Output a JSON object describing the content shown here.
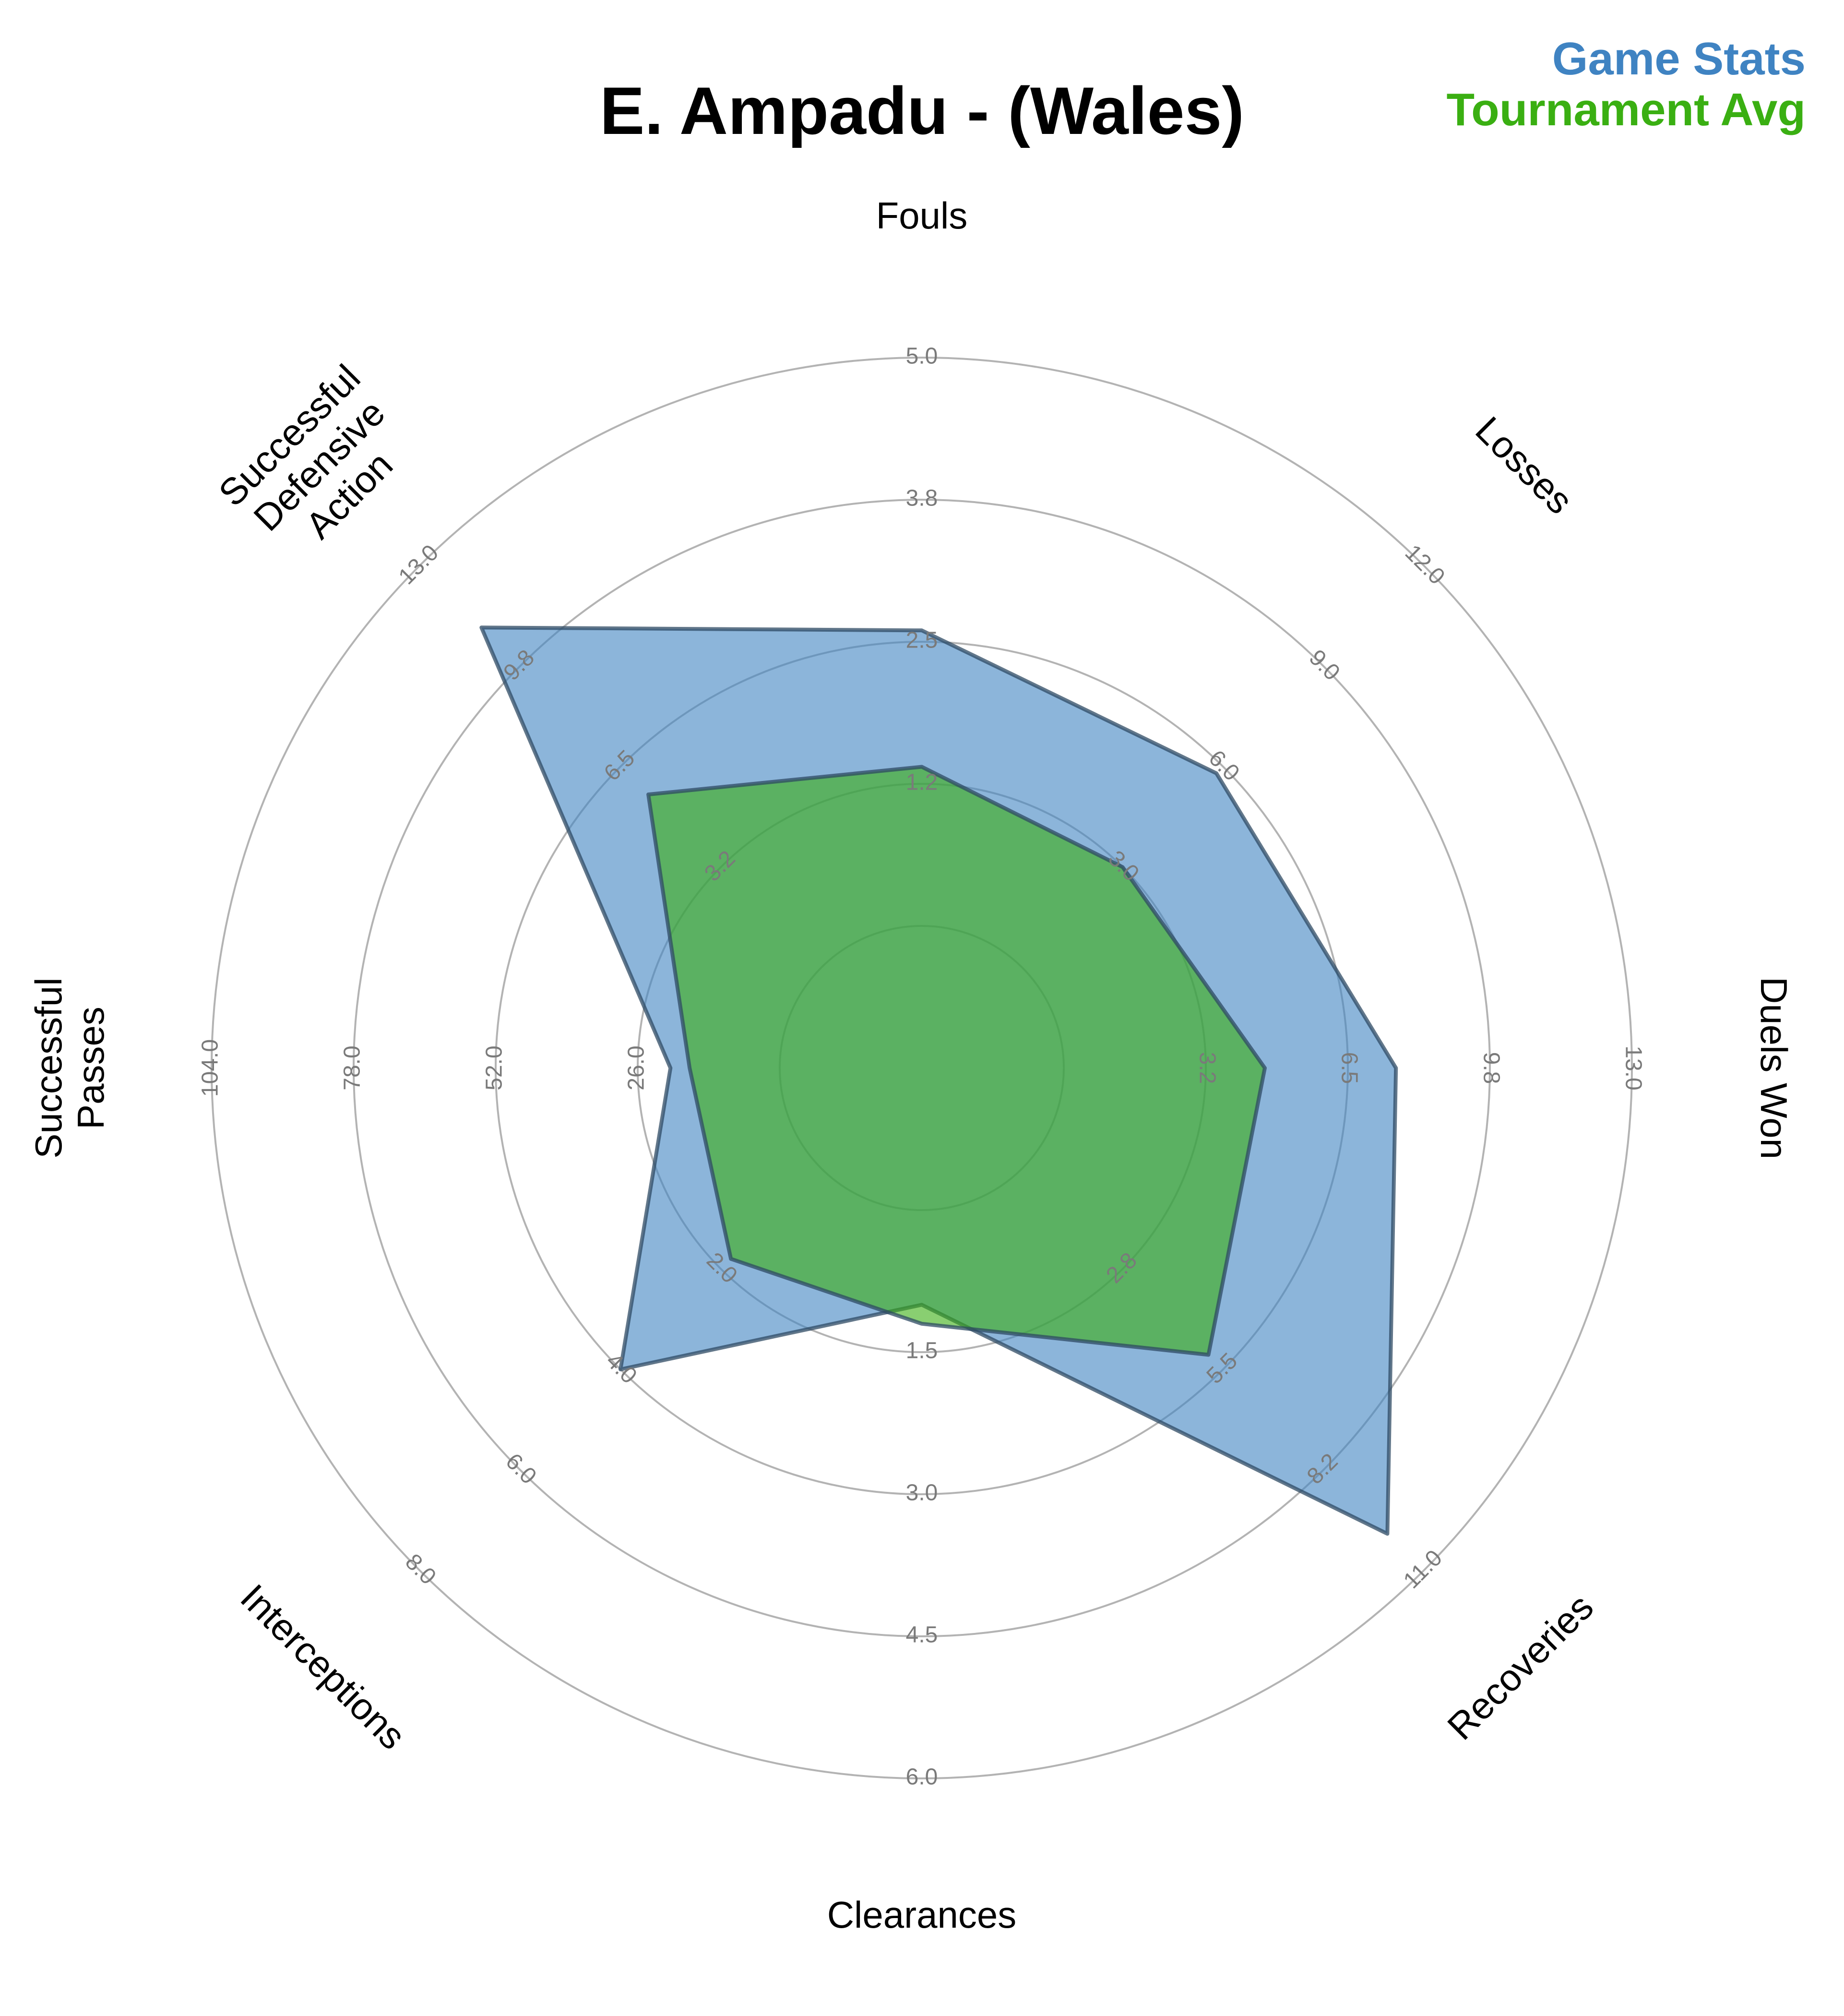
{
  "title": "E. Ampadu - (Wales)",
  "legend": [
    {
      "label": "Game Stats",
      "color": "#3f83c2"
    },
    {
      "label": "Tournament Avg",
      "color": "#3aaf12"
    }
  ],
  "chart_data": {
    "type": "radar",
    "title": "E. Ampadu - (Wales)",
    "axes": [
      {
        "name": "Fouls",
        "label_lines": [
          "Fouls"
        ],
        "ticks": [
          "1.2",
          "2.5",
          "3.8",
          "5.0"
        ],
        "max": 5.0
      },
      {
        "name": "Losses",
        "label_lines": [
          "Losses"
        ],
        "ticks": [
          "3.0",
          "6.0",
          "9.0",
          "12.0"
        ],
        "max": 12.0
      },
      {
        "name": "Duels Won",
        "label_lines": [
          "Duels Won"
        ],
        "ticks": [
          "3.2",
          "6.5",
          "9.8",
          "13.0"
        ],
        "max": 13.0
      },
      {
        "name": "Recoveries",
        "label_lines": [
          "Recoveries"
        ],
        "ticks": [
          "2.8",
          "5.5",
          "8.2",
          "11.0"
        ],
        "max": 11.0
      },
      {
        "name": "Clearances",
        "label_lines": [
          "Clearances"
        ],
        "ticks": [
          "1.5",
          "3.0",
          "4.5",
          "6.0"
        ],
        "max": 6.0
      },
      {
        "name": "Interceptions",
        "label_lines": [
          "Interceptions"
        ],
        "ticks": [
          "2.0",
          "4.0",
          "6.0",
          "8.0"
        ],
        "max": 8.0
      },
      {
        "name": "Successful Passes",
        "label_lines": [
          "Successful",
          "Passes"
        ],
        "ticks": [
          "26.0",
          "52.0",
          "78.0",
          "104.0"
        ],
        "max": 104.0
      },
      {
        "name": "Successful Defensive Action",
        "label_lines": [
          "Successful",
          "Defensive",
          "Action"
        ],
        "ticks": [
          "3.2",
          "6.5",
          "9.8",
          "13.0"
        ],
        "max": 13.0
      }
    ],
    "series": [
      {
        "name": "Game Stats",
        "color": "#3f83c2",
        "values": [
          2.6,
          5.8,
          7.6,
          10.0,
          1.0,
          4.0,
          20.0,
          11.0
        ]
      },
      {
        "name": "Tournament Avg",
        "color": "#3aaf12",
        "values": [
          1.4,
          3.0,
          4.6,
          5.1,
          1.2,
          1.8,
          16.5,
          5.6
        ]
      }
    ]
  }
}
